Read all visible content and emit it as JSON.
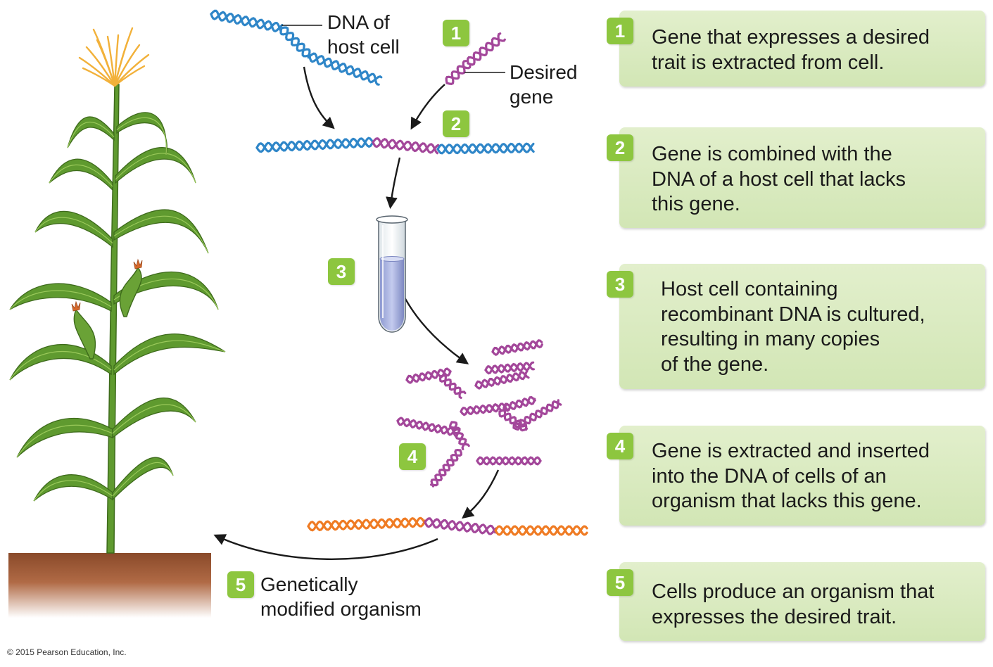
{
  "colors": {
    "host_dna": "#2f86c8",
    "desired_gene": "#a3479a",
    "organism_dna": "#ef7b23",
    "badge": "#8dc63f",
    "step_box": "#d8e9bf",
    "soil": "#a15e3b",
    "plant_green": "#5f9a2f",
    "tassel": "#f2b13a"
  },
  "labels": {
    "dna_host": "DNA of\nhost cell",
    "desired_gene": "Desired\ngene",
    "gmo": "Genetically\nmodified organism"
  },
  "badges": {
    "b1": "1",
    "b2": "2",
    "b3": "3",
    "b4": "4",
    "b5": "5"
  },
  "steps": [
    {
      "num": "1",
      "text": "Gene that expresses a desired\ntrait is extracted from cell."
    },
    {
      "num": "2",
      "text": "Gene is combined with the\nDNA of a host cell that lacks\nthis gene."
    },
    {
      "num": "3",
      "text": "Host cell containing\nrecombinant DNA is cultured,\nresulting in many copies\nof the gene."
    },
    {
      "num": "4",
      "text": "Gene is extracted and inserted\ninto the DNA of cells of an\norganism that lacks this gene."
    },
    {
      "num": "5",
      "text": "Cells produce an organism that\nexpresses the desired trait."
    }
  ],
  "copyright": "© 2015 Pearson Education, Inc."
}
